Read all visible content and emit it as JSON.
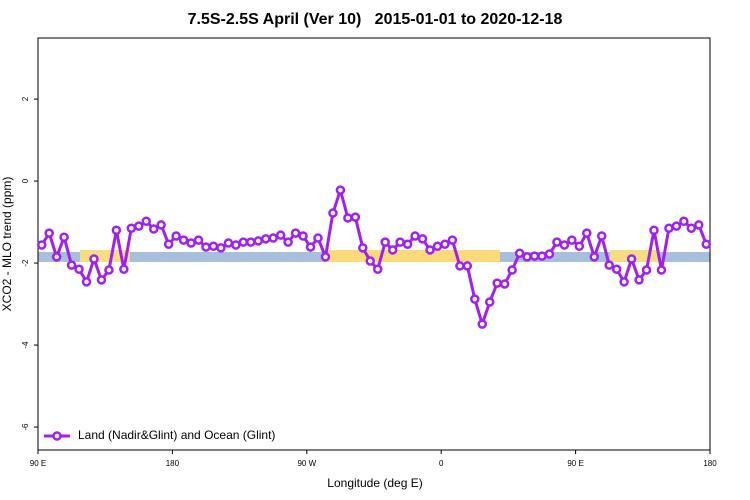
{
  "chart_data": {
    "type": "line",
    "title": "7.5S-2.5S April (Ver 10)   2015-01-01 to 2020-12-18",
    "x_label": "Longitude (deg E)",
    "y_label": "XCO2 - MLO trend (ppm)",
    "xlim": [
      90,
      540
    ],
    "xticks": [
      {
        "value": 90,
        "label": "90 E"
      },
      180,
      {
        "value": 270,
        "label": "90 W"
      },
      {
        "value": 360,
        "label": "0"
      },
      {
        "value": 450,
        "label": "90 E"
      },
      {
        "value": 540,
        "label": "180"
      }
    ],
    "ylim": [
      -6.56,
      3.49
    ],
    "yticks": [
      2,
      0,
      -2,
      -4,
      -6
    ],
    "legend": "bottom-left",
    "x": [
      92.5,
      97.5,
      102.5,
      107.5,
      112.5,
      117.5,
      122.5,
      127.5,
      132.5,
      137.5,
      142.5,
      147.5,
      152.5,
      157.5,
      162.5,
      167.5,
      172.5,
      177.5,
      182.5,
      187.5,
      192.5,
      197.5,
      202.5,
      207.5,
      212.5,
      217.5,
      222.5,
      227.5,
      232.5,
      237.5,
      242.5,
      247.5,
      252.5,
      257.5,
      262.5,
      267.5,
      272.5,
      277.5,
      282.5,
      287.5,
      292.5,
      297.5,
      302.5,
      307.5,
      312.5,
      317.5,
      322.5,
      327.5,
      332.5,
      337.5,
      342.5,
      347.5,
      352.5,
      357.5,
      362.5,
      367.5,
      372.5,
      377.5,
      382.5,
      387.5,
      392.5,
      397.5,
      402.5,
      407.5,
      412.5,
      417.5,
      422.5,
      427.5,
      432.5,
      437.5,
      442.5,
      447.5,
      452.5,
      457.5,
      462.5,
      467.5,
      472.5,
      477.5,
      482.5,
      487.5,
      492.5,
      497.5,
      502.5,
      507.5,
      512.5,
      517.5,
      522.5,
      527.5,
      532.5,
      537.5
    ],
    "series": [
      {
        "name": "Land (Nadir&Glint) and Ocean (Glint)",
        "color": "#a020f0",
        "values": [
          -1.56,
          -1.27,
          -1.85,
          -1.37,
          -2.05,
          -2.15,
          -2.46,
          -1.9,
          -2.41,
          -2.17,
          -1.2,
          -2.15,
          -1.15,
          -1.1,
          -0.98,
          -1.17,
          -1.07,
          -1.54,
          -1.34,
          -1.44,
          -1.51,
          -1.44,
          -1.61,
          -1.59,
          -1.63,
          -1.51,
          -1.56,
          -1.49,
          -1.49,
          -1.46,
          -1.41,
          -1.39,
          -1.32,
          -1.49,
          -1.27,
          -1.34,
          -1.61,
          -1.39,
          -1.85,
          -0.78,
          -0.22,
          -0.9,
          -0.88,
          -1.63,
          -1.95,
          -2.15,
          -1.49,
          -1.68,
          -1.49,
          -1.54,
          -1.34,
          -1.41,
          -1.68,
          -1.59,
          -1.54,
          -1.44,
          -2.07,
          -2.07,
          -2.88,
          -3.49,
          -2.95,
          -2.49,
          -2.51,
          -2.17,
          -1.76,
          -1.85,
          -1.83,
          -1.83,
          -1.78,
          -1.49,
          -1.56,
          -1.44,
          -1.59,
          -1.27,
          -1.85,
          -1.34,
          -2.05,
          -2.15,
          -2.46,
          -1.9,
          -2.41,
          -2.17,
          -1.2,
          -2.17,
          -1.15,
          -1.1,
          -0.98,
          -1.15,
          -1.07,
          -1.54
        ]
      }
    ]
  }
}
